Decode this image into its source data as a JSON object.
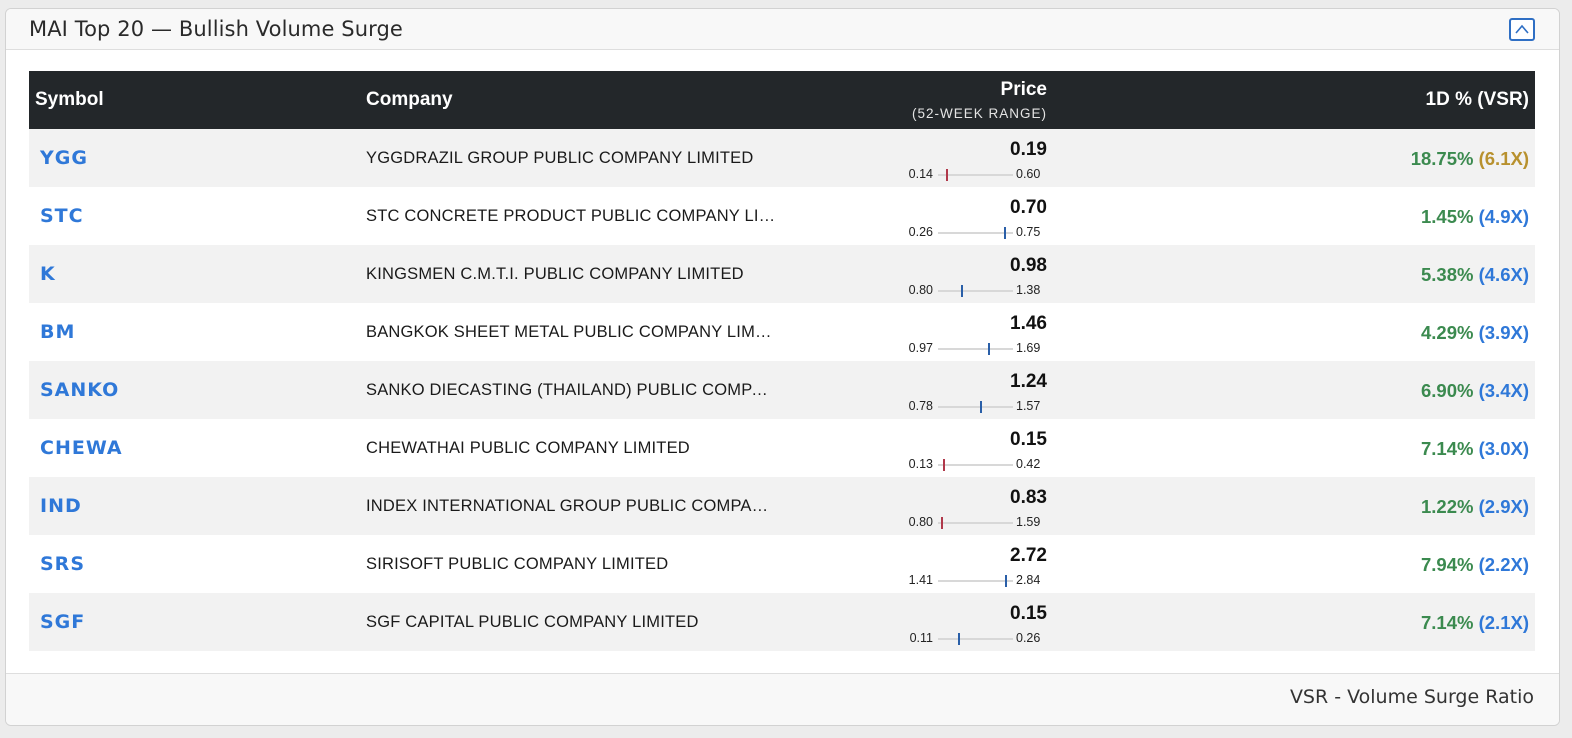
{
  "panel": {
    "title": "MAI Top 20 — Bullish Volume Surge",
    "collapse_icon": "chevron-up-icon"
  },
  "table": {
    "headers": {
      "symbol": "Symbol",
      "company": "Company",
      "price": "Price",
      "price_sub": "(52-WEEK RANGE)",
      "change": "1D % (VSR)"
    },
    "rows": [
      {
        "symbol": "YGG",
        "company": "YGGDRAZIL GROUP PUBLIC COMPANY LIMITED",
        "price": "0.19",
        "low": "0.14",
        "high": "0.60",
        "position": 0.11,
        "marker_color": "#b0384a",
        "pct": "18.75%",
        "vsr": "(6.1X)",
        "vsr_color": "#b8912e"
      },
      {
        "symbol": "STC",
        "company": "STC CONCRETE PRODUCT PUBLIC COMPANY LIMITED",
        "price": "0.70",
        "low": "0.26",
        "high": "0.75",
        "position": 0.9,
        "marker_color": "#2a5fa8",
        "pct": "1.45%",
        "vsr": "(4.9X)",
        "vsr_color": "#2f78d8"
      },
      {
        "symbol": "K",
        "company": "KINGSMEN C.M.T.I. PUBLIC COMPANY LIMITED",
        "price": "0.98",
        "low": "0.80",
        "high": "1.38",
        "position": 0.31,
        "marker_color": "#2a5fa8",
        "pct": "5.38%",
        "vsr": "(4.6X)",
        "vsr_color": "#2f78d8"
      },
      {
        "symbol": "BM",
        "company": "BANGKOK SHEET METAL PUBLIC COMPANY LIMITED",
        "price": "1.46",
        "low": "0.97",
        "high": "1.69",
        "position": 0.68,
        "marker_color": "#2a5fa8",
        "pct": "4.29%",
        "vsr": "(3.9X)",
        "vsr_color": "#2f78d8"
      },
      {
        "symbol": "SANKO",
        "company": "SANKO DIECASTING (THAILAND) PUBLIC COMPANY LIMITED",
        "price": "1.24",
        "low": "0.78",
        "high": "1.57",
        "position": 0.58,
        "marker_color": "#2a5fa8",
        "pct": "6.90%",
        "vsr": "(3.4X)",
        "vsr_color": "#2f78d8"
      },
      {
        "symbol": "CHEWA",
        "company": "CHEWATHAI PUBLIC COMPANY LIMITED",
        "price": "0.15",
        "low": "0.13",
        "high": "0.42",
        "position": 0.07,
        "marker_color": "#b0384a",
        "pct": "7.14%",
        "vsr": "(3.0X)",
        "vsr_color": "#2f78d8"
      },
      {
        "symbol": "IND",
        "company": "INDEX INTERNATIONAL GROUP PUBLIC COMPANY LIMITED",
        "price": "0.83",
        "low": "0.80",
        "high": "1.59",
        "position": 0.04,
        "marker_color": "#b0384a",
        "pct": "1.22%",
        "vsr": "(2.9X)",
        "vsr_color": "#2f78d8"
      },
      {
        "symbol": "SRS",
        "company": "SIRISOFT PUBLIC COMPANY LIMITED",
        "price": "2.72",
        "low": "1.41",
        "high": "2.84",
        "position": 0.92,
        "marker_color": "#2a5fa8",
        "pct": "7.94%",
        "vsr": "(2.2X)",
        "vsr_color": "#2f78d8"
      },
      {
        "symbol": "SGF",
        "company": "SGF CAPITAL PUBLIC COMPANY LIMITED",
        "price": "0.15",
        "low": "0.11",
        "high": "0.26",
        "position": 0.27,
        "marker_color": "#2a5fa8",
        "pct": "7.14%",
        "vsr": "(2.1X)",
        "vsr_color": "#2f78d8"
      }
    ]
  },
  "footer": {
    "note": "VSR - Volume Surge Ratio"
  }
}
